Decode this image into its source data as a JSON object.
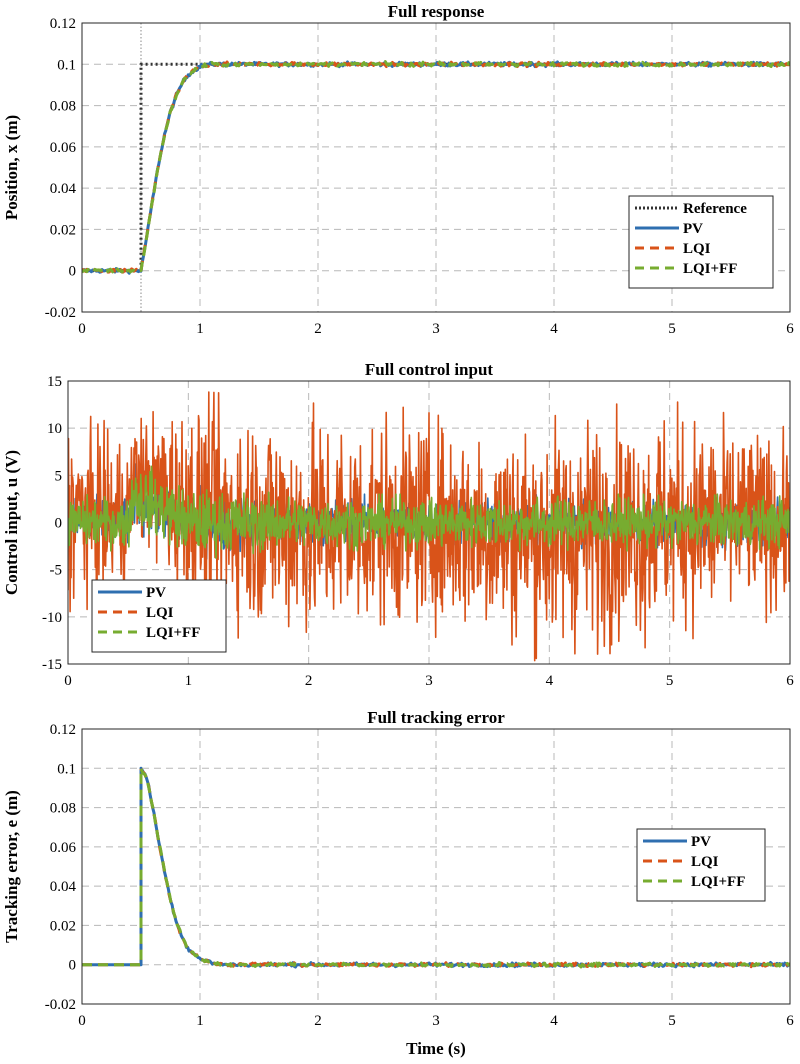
{
  "chart_data": [
    {
      "type": "line",
      "title": "Full response",
      "xlabel": "",
      "ylabel": "Position, x (m)",
      "xlim": [
        0,
        6
      ],
      "ylim": [
        -0.02,
        0.12
      ],
      "xticks": [
        "0",
        "1",
        "2",
        "3",
        "4",
        "5",
        "6"
      ],
      "yticks": [
        "-0.02",
        "0",
        "0.02",
        "0.04",
        "0.06",
        "0.08",
        "0.1",
        "0.12"
      ],
      "grid": true,
      "legend": "lower-right",
      "vertical_marker_x": 0.5,
      "series": [
        {
          "name": "Reference",
          "color": "#333333",
          "style": "dotted",
          "x": [
            0,
            0.5,
            0.5,
            6
          ],
          "y": [
            0,
            0,
            0.1,
            0.1
          ]
        },
        {
          "name": "PV",
          "color": "#2f6fb0",
          "style": "solid",
          "x": [
            0,
            0.5,
            0.55,
            0.6,
            0.65,
            0.7,
            0.75,
            0.8,
            0.85,
            0.9,
            1.0,
            1.1,
            1.2,
            2,
            3,
            4,
            5,
            6
          ],
          "y": [
            0,
            0,
            0.017,
            0.035,
            0.052,
            0.066,
            0.077,
            0.085,
            0.091,
            0.095,
            0.099,
            0.1,
            0.1,
            0.1,
            0.1,
            0.1,
            0.1,
            0.1
          ]
        },
        {
          "name": "LQI",
          "color": "#d95319",
          "style": "dashed",
          "x": [
            0,
            0.5,
            0.55,
            0.6,
            0.65,
            0.7,
            0.75,
            0.8,
            0.85,
            0.9,
            1.0,
            1.1,
            1.2,
            2,
            3,
            4,
            5,
            6
          ],
          "y": [
            0,
            0,
            0.017,
            0.035,
            0.052,
            0.066,
            0.077,
            0.085,
            0.091,
            0.095,
            0.099,
            0.1,
            0.1,
            0.1,
            0.1,
            0.1,
            0.1,
            0.1
          ]
        },
        {
          "name": "LQI+FF",
          "color": "#77ac30",
          "style": "dashed",
          "x": [
            0,
            0.5,
            0.55,
            0.6,
            0.65,
            0.7,
            0.75,
            0.8,
            0.85,
            0.9,
            1.0,
            1.1,
            1.2,
            2,
            3,
            4,
            5,
            6
          ],
          "y": [
            0,
            0,
            0.017,
            0.035,
            0.052,
            0.066,
            0.077,
            0.085,
            0.091,
            0.095,
            0.099,
            0.1,
            0.1,
            0.1,
            0.1,
            0.1,
            0.1,
            0.1
          ]
        }
      ]
    },
    {
      "type": "line",
      "title": "Full control input",
      "xlabel": "",
      "ylabel": "Control input, u (V)",
      "xlim": [
        0,
        6
      ],
      "ylim": [
        -15,
        15
      ],
      "xticks": [
        "0",
        "1",
        "2",
        "3",
        "4",
        "5",
        "6"
      ],
      "yticks": [
        "-15",
        "-10",
        "-5",
        "0",
        "5",
        "10",
        "15"
      ],
      "grid": true,
      "legend": "lower-left",
      "series": [
        {
          "name": "PV",
          "color": "#2f6fb0",
          "style": "solid",
          "x": [
            0,
            0.5,
            0.55,
            1,
            2,
            3,
            4,
            5,
            6
          ],
          "y_upper": [
            3,
            3,
            7,
            4,
            3,
            3,
            3,
            3,
            3
          ],
          "y_lower": [
            -3,
            -3,
            -1,
            -4,
            -3,
            -3,
            -3,
            -3,
            -3
          ]
        },
        {
          "name": "LQI",
          "color": "#d95319",
          "style": "dashed",
          "x": [
            0,
            0.5,
            0.55,
            1,
            2,
            3,
            4,
            5,
            6
          ],
          "y_upper": [
            12,
            10,
            12,
            14,
            13,
            12,
            12,
            13,
            10
          ],
          "y_lower": [
            -10,
            -9,
            -2,
            -11,
            -14,
            -12,
            -15,
            -13,
            -10
          ]
        },
        {
          "name": "LQI+FF",
          "color": "#77ac30",
          "style": "dashed",
          "x": [
            0,
            0.5,
            0.55,
            1,
            2,
            3,
            4,
            5,
            6
          ],
          "y_upper": [
            3,
            3,
            7,
            4,
            3,
            3,
            3,
            3,
            3
          ],
          "y_lower": [
            -3,
            -3,
            -1,
            -4,
            -3,
            -3,
            -3,
            -3,
            -3
          ]
        }
      ]
    },
    {
      "type": "line",
      "title": "Full tracking error",
      "xlabel": "Time (s)",
      "ylabel": "Tracking error, e (m)",
      "xlim": [
        0,
        6
      ],
      "ylim": [
        -0.02,
        0.12
      ],
      "xticks": [
        "0",
        "1",
        "2",
        "3",
        "4",
        "5",
        "6"
      ],
      "yticks": [
        "-0.02",
        "0",
        "0.02",
        "0.04",
        "0.06",
        "0.08",
        "0.1",
        "0.12"
      ],
      "grid": true,
      "legend": "right",
      "series": [
        {
          "name": "PV",
          "color": "#2f6fb0",
          "style": "solid",
          "x": [
            0,
            0.5,
            0.5,
            0.55,
            0.6,
            0.65,
            0.7,
            0.75,
            0.8,
            0.85,
            0.9,
            1.0,
            1.1,
            1.2,
            2,
            3,
            4,
            5,
            6
          ],
          "y": [
            0,
            0,
            0.1,
            0.095,
            0.08,
            0.063,
            0.047,
            0.033,
            0.022,
            0.014,
            0.008,
            0.003,
            0.001,
            0,
            0,
            0,
            0,
            0,
            0
          ]
        },
        {
          "name": "LQI",
          "color": "#d95319",
          "style": "dashed",
          "x": [
            0,
            0.5,
            0.5,
            0.55,
            0.6,
            0.65,
            0.7,
            0.75,
            0.8,
            0.85,
            0.9,
            1.0,
            1.1,
            1.2,
            2,
            3,
            4,
            5,
            6
          ],
          "y": [
            0,
            0,
            0.1,
            0.095,
            0.08,
            0.063,
            0.047,
            0.033,
            0.022,
            0.014,
            0.008,
            0.003,
            0.001,
            0,
            0,
            0,
            0,
            0,
            0
          ]
        },
        {
          "name": "LQI+FF",
          "color": "#77ac30",
          "style": "dashed",
          "x": [
            0,
            0.5,
            0.5,
            0.55,
            0.6,
            0.65,
            0.7,
            0.75,
            0.8,
            0.85,
            0.9,
            1.0,
            1.1,
            1.2,
            2,
            3,
            4,
            5,
            6
          ],
          "y": [
            0,
            0,
            0.1,
            0.095,
            0.08,
            0.063,
            0.047,
            0.033,
            0.022,
            0.014,
            0.008,
            0.003,
            0.001,
            0,
            0,
            0,
            0,
            0,
            0
          ]
        }
      ]
    }
  ]
}
